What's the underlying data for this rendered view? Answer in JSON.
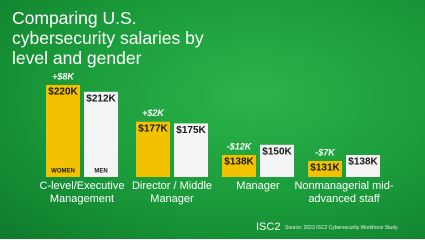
{
  "chart_data": {
    "type": "bar",
    "title": "Comparing U.S. cybersecurity salaries by level and gender",
    "categories": [
      "C-level/Executive Management",
      "Director / Middle Manager",
      "Manager",
      "Nonmanagerial mid-advanced staff"
    ],
    "series": [
      {
        "name": "WOMEN",
        "color": "#f2c200",
        "values": [
          220,
          177,
          138,
          131
        ],
        "value_labels": [
          "$220K",
          "$177K",
          "$138K",
          "$131K"
        ]
      },
      {
        "name": "MEN",
        "color": "#f4f4f4",
        "values": [
          212,
          175,
          150,
          138
        ],
        "value_labels": [
          "$212K",
          "$175K",
          "$150K",
          "$138K"
        ]
      }
    ],
    "annotations": [
      "+$8K",
      "+$2K",
      "-$12K",
      "-$7K"
    ],
    "brand": "ISC2",
    "source": "Source: 2023 ISC2 Cybersecurity Workforce Study."
  }
}
